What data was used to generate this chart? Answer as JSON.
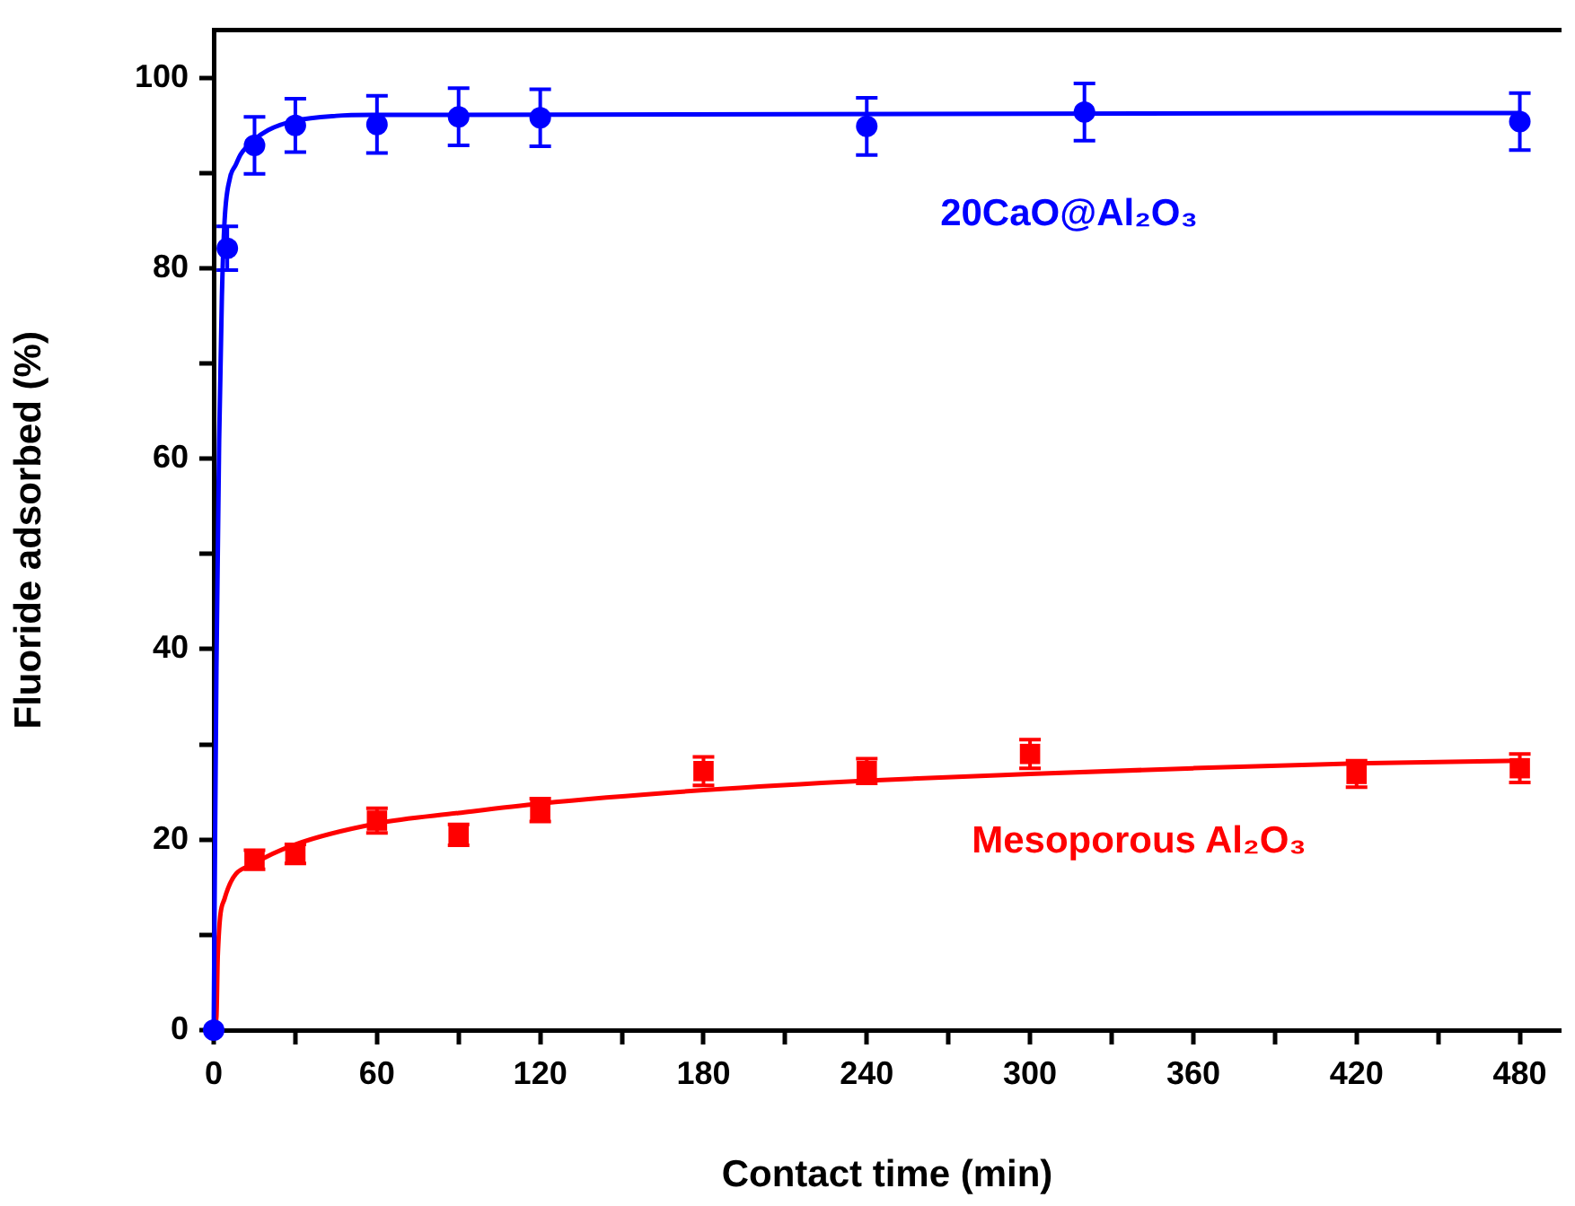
{
  "chart_data": {
    "type": "scatter",
    "xlabel": "Contact time (min)",
    "ylabel": "Fluoride adsorbed (%)",
    "xlim": [
      0,
      495
    ],
    "ylim": [
      0,
      105
    ],
    "xticks": [
      0,
      {
        "value": 30,
        "label": null
      },
      60,
      {
        "value": 90,
        "label": null
      },
      120,
      {
        "value": 150,
        "label": null
      },
      180,
      {
        "value": 210,
        "label": null
      },
      240,
      {
        "value": 270,
        "label": null
      },
      300,
      {
        "value": 330,
        "label": null
      },
      360,
      {
        "value": 390,
        "label": null
      },
      420,
      {
        "value": 450,
        "label": null
      },
      480
    ],
    "yticks": [
      0,
      {
        "value": 10,
        "label": null
      },
      20,
      {
        "value": 30,
        "label": null
      },
      40,
      {
        "value": 50,
        "label": null
      },
      60,
      {
        "value": 70,
        "label": null
      },
      80,
      {
        "value": 90,
        "label": null
      },
      100
    ],
    "grid": false,
    "legend": false,
    "series": [
      {
        "name": "20CaO@Al₂O₃",
        "color": "#0000ff",
        "marker": "circle",
        "x": [
          0,
          5,
          15,
          30,
          60,
          90,
          120,
          240,
          320,
          480
        ],
        "values": [
          0,
          82.1,
          92.9,
          95.0,
          95.1,
          95.9,
          95.8,
          94.9,
          96.4,
          95.4
        ],
        "errors": [
          null,
          2.3,
          3,
          2.8,
          3,
          3,
          3,
          3,
          3,
          3
        ]
      },
      {
        "name": "Mesoporous Al₂O₃",
        "color": "#ff0000",
        "marker": "square",
        "x": [
          15,
          30,
          60,
          90,
          120,
          180,
          240,
          300,
          420,
          480
        ],
        "values": [
          17.9,
          18.5,
          22.0,
          20.5,
          23.1,
          27.2,
          27.2,
          29.0,
          26.9,
          27.5
        ],
        "errors": [
          1,
          1,
          1.3,
          1.1,
          1.2,
          1.5,
          1.3,
          1.5,
          1.4,
          1.5
        ]
      },
      {
        "type": "line",
        "color": "#0000ff",
        "marker": "none",
        "x": [
          0,
          0.5,
          1,
          2,
          3,
          4,
          6,
          8,
          10,
          15,
          20,
          30,
          45,
          60,
          480
        ],
        "values": [
          0,
          20,
          38,
          62,
          77,
          85,
          89.5,
          90.8,
          92,
          93.5,
          94.5,
          95.5,
          96,
          96.1,
          96.3
        ]
      },
      {
        "type": "line",
        "color": "#ff0000",
        "marker": "none",
        "x": [
          0,
          1,
          1.5,
          4,
          15,
          30,
          60,
          90,
          120,
          180,
          240,
          300,
          360,
          420,
          480
        ],
        "values": [
          0,
          1.4,
          7.8,
          13.8,
          17.5,
          19.5,
          21.7,
          22.8,
          23.8,
          25.2,
          26.2,
          26.9,
          27.5,
          28,
          28.3
        ]
      }
    ]
  }
}
